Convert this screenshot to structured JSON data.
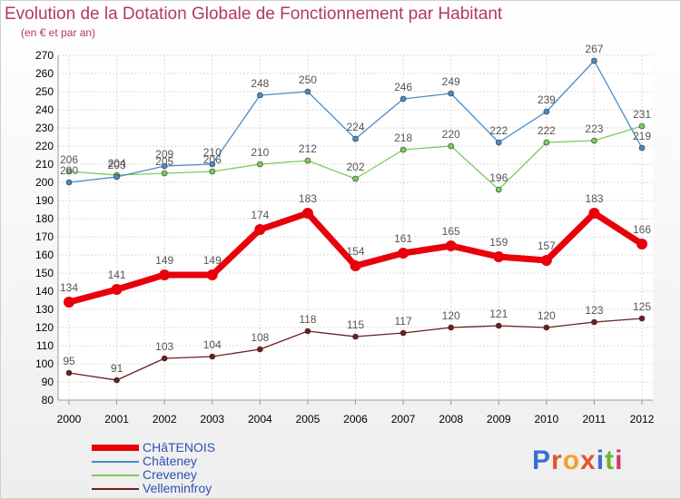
{
  "header": {
    "title": "Evolution de la Dotation Globale de Fonctionnement par Habitant",
    "subtitle": "(en € et par an)"
  },
  "logo": {
    "text": "Proxiti",
    "colors": [
      "#3b6fd6",
      "#e2552b",
      "#f2a12e",
      "#e2552b",
      "#3b6fd6",
      "#6bb534",
      "#d6356c"
    ]
  },
  "chart_data": {
    "type": "line",
    "x": [
      2000,
      2001,
      2002,
      2003,
      2004,
      2005,
      2006,
      2007,
      2008,
      2009,
      2010,
      2011,
      2012
    ],
    "ylim": [
      80,
      270
    ],
    "yticks": [
      80,
      90,
      100,
      110,
      120,
      130,
      140,
      150,
      160,
      170,
      180,
      190,
      200,
      210,
      220,
      230,
      240,
      250,
      260,
      270
    ],
    "grid": true,
    "legend_position": "bottom-left",
    "series": [
      {
        "name": "CHâTENOIS",
        "color": "#e8000b",
        "thick": true,
        "values": [
          134,
          141,
          149,
          149,
          174,
          183,
          154,
          161,
          165,
          159,
          157,
          183,
          166
        ]
      },
      {
        "name": "Châteney",
        "color": "#4a8ac8",
        "thick": false,
        "values": [
          200,
          203,
          209,
          210,
          248,
          250,
          224,
          246,
          249,
          222,
          239,
          267,
          219
        ]
      },
      {
        "name": "Creveney",
        "color": "#7ccb5a",
        "thick": false,
        "values": [
          206,
          204,
          205,
          206,
          210,
          212,
          202,
          218,
          220,
          196,
          222,
          223,
          231
        ]
      },
      {
        "name": "Velleminfroy",
        "color": "#6b1f1f",
        "thick": false,
        "values": [
          95,
          91,
          103,
          104,
          108,
          118,
          115,
          117,
          120,
          121,
          120,
          123,
          125
        ]
      }
    ]
  }
}
